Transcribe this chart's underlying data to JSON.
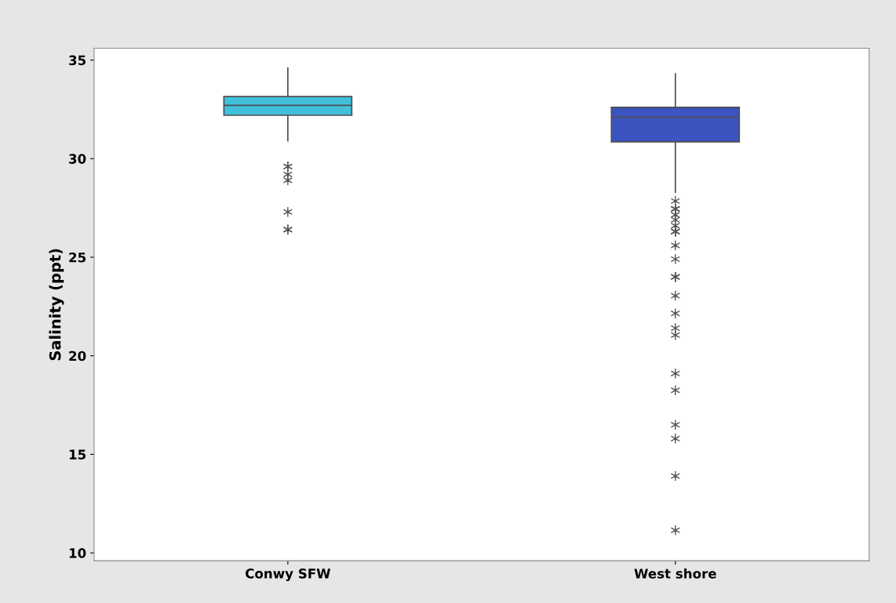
{
  "chart_data": {
    "type": "box",
    "ylabel": "Salinity (ppt)",
    "categories": [
      "Conwy SFW",
      "West shore"
    ],
    "colors": [
      "#41c0dc",
      "#3b54bf"
    ],
    "boxes": [
      {
        "low": 30.9,
        "q1": 32.2,
        "median": 32.7,
        "q3": 33.15,
        "high": 34.6,
        "outliers": [
          29.6,
          29.6,
          29.2,
          28.9,
          27.3,
          26.4,
          26.4
        ]
      },
      {
        "low": 28.3,
        "q1": 30.85,
        "median": 32.1,
        "q3": 32.6,
        "high": 34.3,
        "outliers": [
          27.85,
          27.45,
          27.45,
          27.45,
          27.15,
          26.9,
          26.6,
          26.3,
          26.3,
          26.3,
          25.6,
          24.9,
          24.0,
          24.0,
          24.0,
          23.05,
          22.15,
          21.4,
          21.05,
          19.1,
          18.25,
          16.5,
          15.8,
          13.9,
          11.15
        ]
      }
    ],
    "ylim": [
      9.6,
      35.6
    ],
    "yticks": [
      10,
      15,
      20,
      25,
      30,
      35
    ],
    "grid": false
  }
}
